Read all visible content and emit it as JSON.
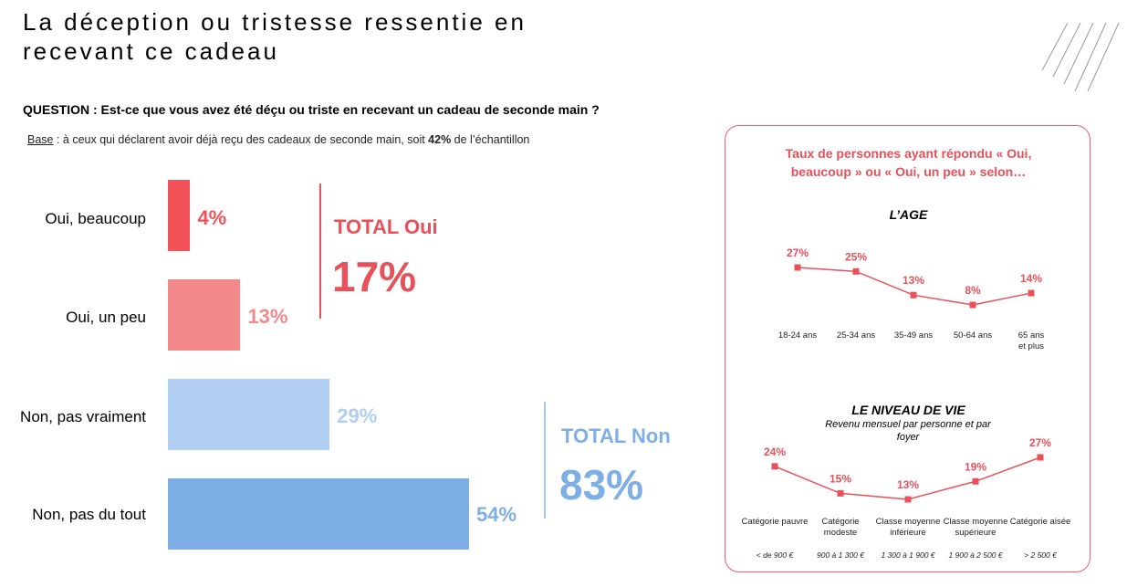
{
  "title_line1": "La déception ou tristesse ressentie en",
  "title_line2": "recevant ce cadeau",
  "question": "QUESTION : Est-ce que vous avez été déçu ou triste en recevant un cadeau de seconde main ?",
  "base": {
    "label": "Base",
    "text_before": " : à ceux qui déclarent avoir déjà reçu des cadeaux de seconde main, soit ",
    "percent": "42%",
    "text_after": " de l’échantillon"
  },
  "totals": {
    "oui_label": "TOTAL Oui",
    "oui_value": "17%",
    "non_label": "TOTAL Non",
    "non_value": "83%"
  },
  "colors": {
    "oui_beaucoup": "#f25258",
    "oui_peu": "#f4898c",
    "non_pas_vraiment": "#b1cff2",
    "non_pas_du_tout": "#7eaee6",
    "accent_red": "#e8505a"
  },
  "chart_data": [
    {
      "type": "bar",
      "orientation": "horizontal",
      "categories": [
        "Oui, beaucoup",
        "Oui, un peu",
        "Non, pas vraiment",
        "Non, pas du tout"
      ],
      "values": [
        4,
        13,
        29,
        54
      ],
      "value_labels": [
        "4%",
        "13%",
        "29%",
        "54%"
      ]
    },
    {
      "type": "line",
      "panel_title": "Taux de personnes ayant répondu « Oui, beaucoup » ou « Oui, un peu » selon…",
      "title": "L’AGE",
      "categories": [
        "18-24 ans",
        "25-34 ans",
        "35-49 ans",
        "50-64 ans",
        "65 ans et plus"
      ],
      "values": [
        27,
        25,
        13,
        8,
        14
      ],
      "value_labels": [
        "27%",
        "25%",
        "13%",
        "8%",
        "14%"
      ]
    },
    {
      "type": "line",
      "title": "LE NIVEAU DE VIE",
      "subtitle": "Revenu mensuel par personne et par foyer",
      "categories": [
        "Catégorie pauvre",
        "Catégorie modeste",
        "Classe moyenne inférieure",
        "Classe moyenne supérieure",
        "Catégorie aisée"
      ],
      "ranges": [
        "< de 900 €",
        "900 à 1 300 €",
        "1 300 à 1 900 €",
        "1 900 à 2 500 €",
        "> 2 500 €"
      ],
      "values": [
        24,
        15,
        13,
        19,
        27
      ],
      "value_labels": [
        "24%",
        "15%",
        "13%",
        "19%",
        "27%"
      ]
    }
  ]
}
